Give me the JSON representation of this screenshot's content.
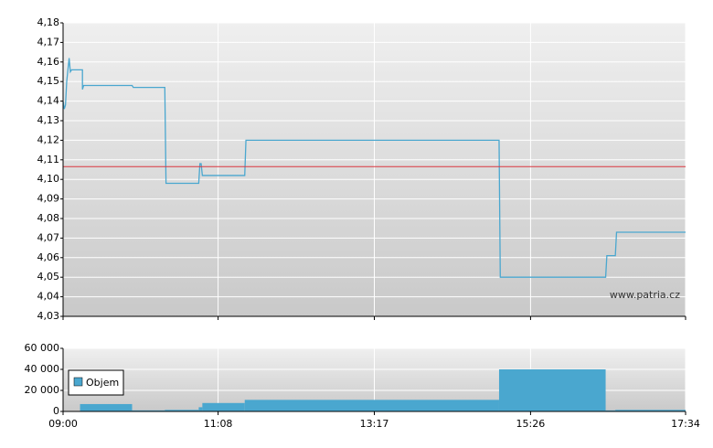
{
  "chart_data": [
    {
      "type": "line",
      "annotation": "www.patria.cz",
      "x": [
        "09:00",
        "09:01",
        "09:02",
        "09:03",
        "09:05",
        "09:06",
        "09:07",
        "09:16",
        "09:16",
        "09:17",
        "09:57",
        "09:58",
        "10:24",
        "10:25",
        "10:52",
        "10:53",
        "10:54",
        "10:55",
        "11:30",
        "11:31",
        "15:00",
        "15:01",
        "16:28",
        "16:29",
        "16:36",
        "16:37",
        "17:34"
      ],
      "values": [
        4.14,
        4.136,
        4.138,
        4.15,
        4.162,
        4.155,
        4.156,
        4.156,
        4.146,
        4.148,
        4.148,
        4.147,
        4.147,
        4.098,
        4.098,
        4.108,
        4.108,
        4.102,
        4.102,
        4.12,
        4.12,
        4.05,
        4.05,
        4.061,
        4.061,
        4.073,
        4.073
      ],
      "color": "#4aa7cf",
      "reference_line": 4.1065,
      "reference_color": "#d9363e",
      "xlim": [
        "09:00",
        "17:34"
      ],
      "ylim": [
        4.03,
        4.18
      ],
      "yticks": [
        {
          "value": 4.03,
          "label": "4,03"
        },
        {
          "value": 4.04,
          "label": "4,04"
        },
        {
          "value": 4.05,
          "label": "4,05"
        },
        {
          "value": 4.06,
          "label": "4,06"
        },
        {
          "value": 4.07,
          "label": "4,07"
        },
        {
          "value": 4.08,
          "label": "4,08"
        },
        {
          "value": 4.09,
          "label": "4,09"
        },
        {
          "value": 4.1,
          "label": "4,10"
        },
        {
          "value": 4.11,
          "label": "4,11"
        },
        {
          "value": 4.12,
          "label": "4,12"
        },
        {
          "value": 4.13,
          "label": "4,13"
        },
        {
          "value": 4.14,
          "label": "4,14"
        },
        {
          "value": 4.15,
          "label": "4,15"
        },
        {
          "value": 4.16,
          "label": "4,16"
        },
        {
          "value": 4.17,
          "label": "4,17"
        },
        {
          "value": 4.18,
          "label": "4,18"
        }
      ],
      "grid": true
    },
    {
      "type": "histogram",
      "bins": [
        "09:00",
        "09:14",
        "09:57",
        "10:24",
        "10:52",
        "10:55",
        "11:30",
        "15:00",
        "16:28",
        "16:36",
        "17:34"
      ],
      "series": [
        {
          "name": "Objem",
          "color": "#4aa7cf",
          "values": [
            0,
            7000,
            1000,
            1500,
            4000,
            8000,
            11000,
            40000,
            1000,
            1500
          ]
        }
      ],
      "xlim": [
        "09:00",
        "17:34"
      ],
      "xticks": [
        "09:00",
        "11:08",
        "13:17",
        "15:26",
        "17:34"
      ],
      "ylim": [
        0,
        60000
      ],
      "yticks": [
        0,
        {
          "value": 20000,
          "label": "20 000"
        },
        {
          "value": 40000,
          "label": "40 000"
        },
        {
          "value": 60000,
          "label": "60 000"
        }
      ],
      "grid": true
    }
  ]
}
